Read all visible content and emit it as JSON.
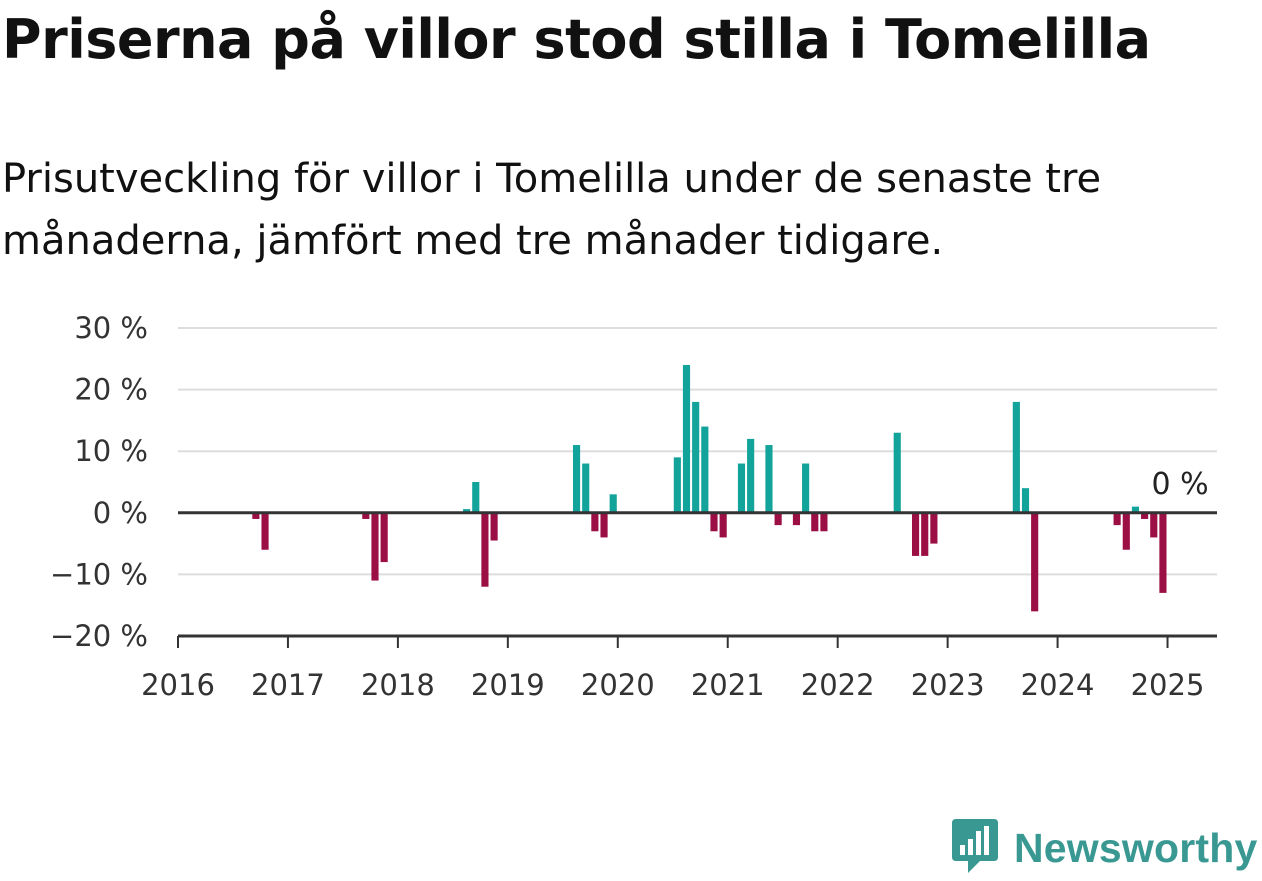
{
  "header": {
    "title": "Priserna på villor stod stilla i Tomelilla",
    "subtitle": "Prisutveckling för villor i Tomelilla under de senaste tre månaderna, jämfört med tre månader tidigare."
  },
  "brand": {
    "name": "Newsworthy",
    "icon": "newsworthy-logo-icon",
    "color": "#3a9893"
  },
  "chart_data": {
    "type": "bar",
    "title": "Priserna på villor stod stilla i Tomelilla",
    "subtitle": "Prisutveckling för villor i Tomelilla under de senaste tre månaderna, jämfört med tre månader tidigare.",
    "xlabel": "",
    "ylabel": "",
    "xlim": [
      2016,
      2025.45
    ],
    "ylim": [
      -20,
      30
    ],
    "y_ticks": [
      {
        "value": 30,
        "label": "30 %"
      },
      {
        "value": 20,
        "label": "20 %"
      },
      {
        "value": 10,
        "label": "10 %"
      },
      {
        "value": 0,
        "label": "0 %"
      },
      {
        "value": -10,
        "label": "−10 %"
      },
      {
        "value": -20,
        "label": "−20 %"
      }
    ],
    "x_ticks": [
      "2016",
      "2017",
      "2018",
      "2019",
      "2020",
      "2021",
      "2022",
      "2023",
      "2024",
      "2025"
    ],
    "grid": true,
    "colors": {
      "positive": "#12a39a",
      "negative": "#9b0f45",
      "grid": "#dddddd",
      "axis": "#333333"
    },
    "values": [
      {
        "x": "2016-09",
        "y": -1
      },
      {
        "x": "2016-10",
        "y": -6
      },
      {
        "x": "2017-09",
        "y": -1
      },
      {
        "x": "2017-10",
        "y": -11
      },
      {
        "x": "2017-11",
        "y": -8
      },
      {
        "x": "2018-08",
        "y": 0.6
      },
      {
        "x": "2018-09",
        "y": 5
      },
      {
        "x": "2018-10",
        "y": -12
      },
      {
        "x": "2018-11",
        "y": -4.5
      },
      {
        "x": "2019-08",
        "y": 11
      },
      {
        "x": "2019-09",
        "y": 8
      },
      {
        "x": "2019-10",
        "y": -3
      },
      {
        "x": "2019-11",
        "y": -4
      },
      {
        "x": "2019-12",
        "y": 3
      },
      {
        "x": "2020-07",
        "y": 9
      },
      {
        "x": "2020-08",
        "y": 24
      },
      {
        "x": "2020-09",
        "y": 18
      },
      {
        "x": "2020-10",
        "y": 14
      },
      {
        "x": "2020-11",
        "y": -3
      },
      {
        "x": "2020-12",
        "y": -4
      },
      {
        "x": "2021-02",
        "y": 8
      },
      {
        "x": "2021-03",
        "y": 12
      },
      {
        "x": "2021-05",
        "y": 11
      },
      {
        "x": "2021-06",
        "y": -2
      },
      {
        "x": "2021-08",
        "y": -2
      },
      {
        "x": "2021-09",
        "y": 8
      },
      {
        "x": "2021-10",
        "y": -3
      },
      {
        "x": "2021-11",
        "y": -3
      },
      {
        "x": "2022-07",
        "y": 13
      },
      {
        "x": "2022-09",
        "y": -7
      },
      {
        "x": "2022-10",
        "y": -7
      },
      {
        "x": "2022-11",
        "y": -5
      },
      {
        "x": "2023-08",
        "y": 18
      },
      {
        "x": "2023-09",
        "y": 4
      },
      {
        "x": "2023-10",
        "y": -16
      },
      {
        "x": "2024-07",
        "y": -2
      },
      {
        "x": "2024-08",
        "y": -6
      },
      {
        "x": "2024-09",
        "y": 1
      },
      {
        "x": "2024-10",
        "y": -1
      },
      {
        "x": "2024-11",
        "y": -4
      },
      {
        "x": "2024-12",
        "y": -13
      },
      {
        "x": "2025-01",
        "y": 0
      }
    ],
    "annotations": [
      {
        "x": "2025-01",
        "y": 0,
        "text": "0 %"
      }
    ]
  }
}
